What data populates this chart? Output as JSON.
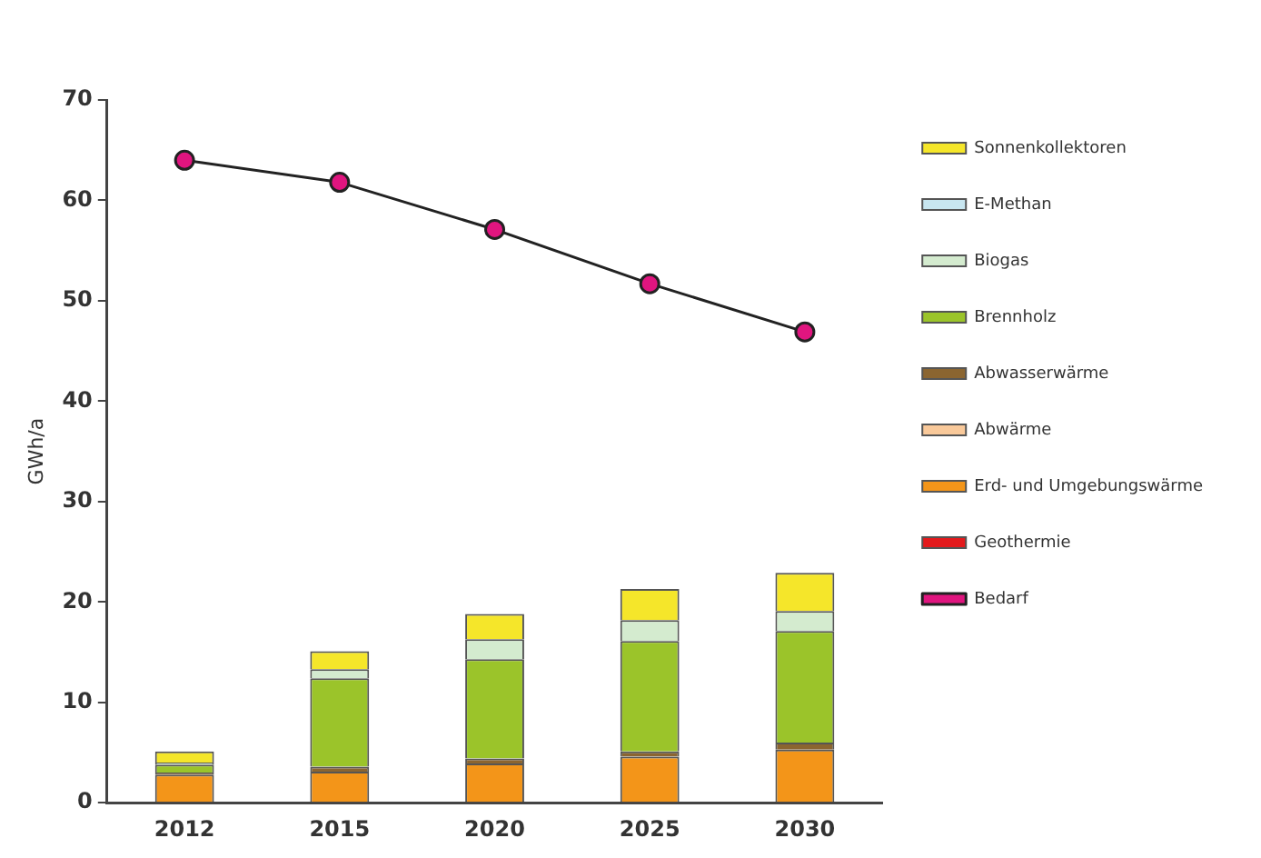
{
  "chart_data": {
    "type": "bar",
    "stacked": true,
    "ylabel": "GWh/a",
    "categories": [
      "2012",
      "2015",
      "2020",
      "2025",
      "2030"
    ],
    "ylim": [
      0,
      70
    ],
    "yticks": [
      0,
      10,
      20,
      30,
      40,
      50,
      60,
      70
    ],
    "grid": false,
    "legend": "right",
    "marker": "circle",
    "series": [
      {
        "name": "Bedarf",
        "type": "line",
        "color": "#e0157f",
        "values": [
          64.0,
          61.8,
          57.1,
          51.7,
          46.9
        ]
      },
      {
        "name": "Geothermie",
        "color": "#e31a1c",
        "values": [
          0,
          0,
          0,
          0,
          0
        ]
      },
      {
        "name": "Erd- und Umgebungswärme",
        "color": "#f39519",
        "values": [
          2.8,
          3.1,
          3.9,
          4.6,
          5.3
        ]
      },
      {
        "name": "Abwärme",
        "color": "#f9c99a",
        "values": [
          0,
          0,
          0,
          0,
          0
        ]
      },
      {
        "name": "Abwasserwärme",
        "color": "#8b6530",
        "values": [
          0.2,
          0.5,
          0.5,
          0.5,
          0.7
        ]
      },
      {
        "name": "Brennholz",
        "color": "#9bc42a",
        "values": [
          0.8,
          8.8,
          9.9,
          11.0,
          11.1
        ]
      },
      {
        "name": "Biogas",
        "color": "#d4ebcf",
        "values": [
          0.2,
          0.9,
          2.0,
          2.1,
          2.0
        ]
      },
      {
        "name": "E-Methan",
        "color": "#c8e6f0",
        "values": [
          0,
          0,
          0,
          0,
          0
        ]
      },
      {
        "name": "Sonnenkollektoren",
        "color": "#f5e62a",
        "values": [
          1.1,
          1.8,
          2.5,
          3.1,
          3.8
        ]
      }
    ]
  }
}
